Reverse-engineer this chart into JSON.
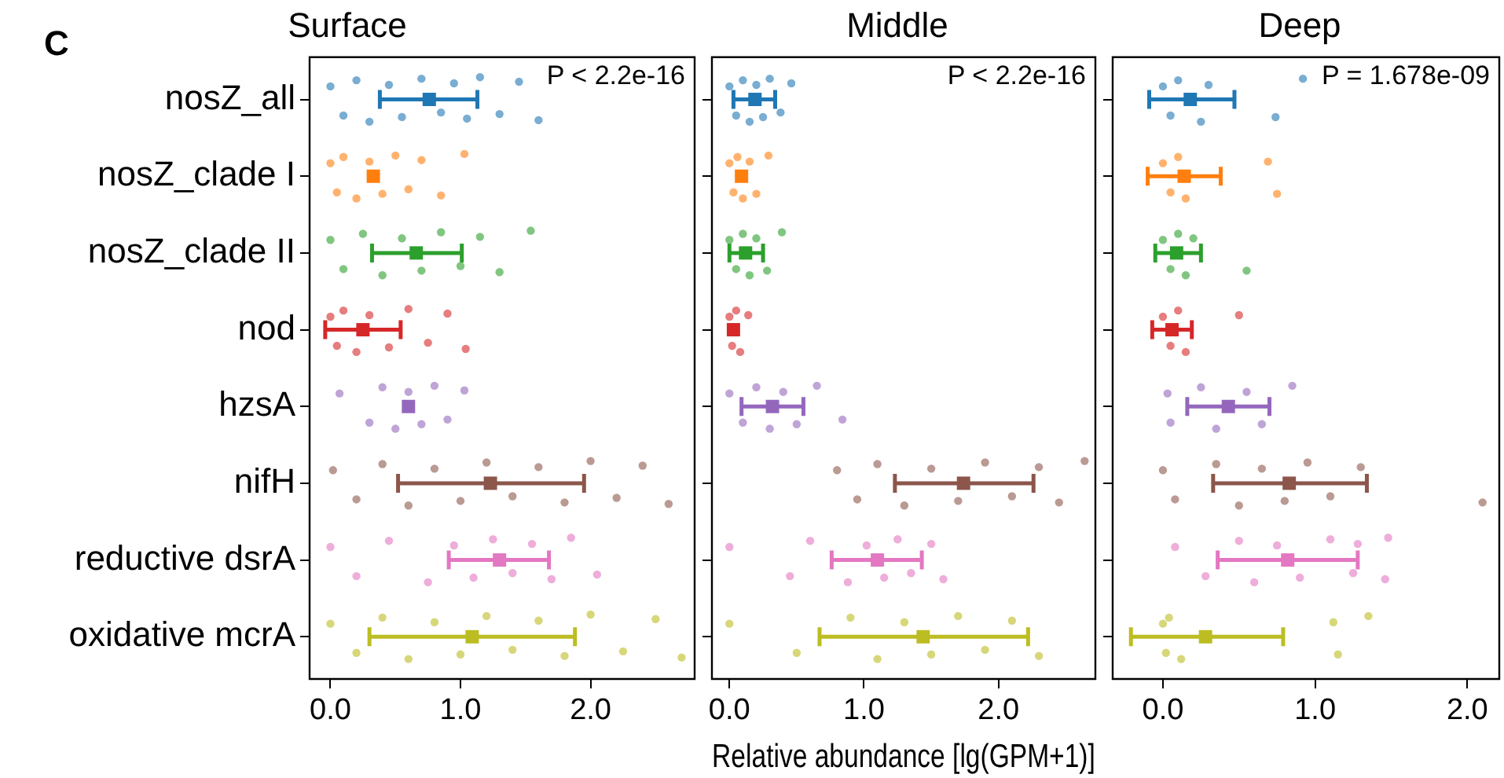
{
  "chart_data": [
    {
      "type": "scatter",
      "title": "Surface",
      "orientation": "horizontal",
      "annotations": [
        "C",
        "P < 2.2e-16"
      ],
      "categories": [
        "nosZ_all",
        "nosZ_clade I",
        "nosZ_clade II",
        "nod",
        "hzsA",
        "nifH",
        "reductive dsrA",
        "oxidative mcrA"
      ],
      "xlim": [
        -0.16,
        2.8
      ],
      "xticks": [
        {
          "value": 0,
          "label": "0.0"
        },
        {
          "value": 1,
          "label": "1.0"
        },
        {
          "value": 2,
          "label": "2.0"
        }
      ],
      "series": [
        {
          "type": "scatter",
          "marker": "circle",
          "color": "#1f77b4",
          "x": [
            "nosZ_all",
            "nosZ_all",
            "nosZ_all",
            "nosZ_all",
            "nosZ_all",
            "nosZ_all",
            "nosZ_all",
            "nosZ_all",
            "nosZ_all",
            "nosZ_all",
            "nosZ_all",
            "nosZ_all",
            "nosZ_all",
            "nosZ_all"
          ],
          "values": [
            0.0,
            0.1,
            0.2,
            0.3,
            0.45,
            0.55,
            0.7,
            0.85,
            0.95,
            1.05,
            1.15,
            1.3,
            1.45,
            1.6
          ]
        },
        {
          "type": "scatter",
          "marker": "circle",
          "color": "#ff7f0e",
          "x": [
            "nosZ_clade I",
            "nosZ_clade I",
            "nosZ_clade I",
            "nosZ_clade I",
            "nosZ_clade I",
            "nosZ_clade I",
            "nosZ_clade I",
            "nosZ_clade I",
            "nosZ_clade I",
            "nosZ_clade I",
            "nosZ_clade I"
          ],
          "values": [
            0.0,
            0.05,
            0.1,
            0.2,
            0.3,
            0.4,
            0.5,
            0.6,
            0.7,
            0.85,
            1.03
          ]
        },
        {
          "type": "scatter",
          "marker": "circle",
          "color": "#2ca02c",
          "x": [
            "nosZ_clade II",
            "nosZ_clade II",
            "nosZ_clade II",
            "nosZ_clade II",
            "nosZ_clade II",
            "nosZ_clade II",
            "nosZ_clade II",
            "nosZ_clade II",
            "nosZ_clade II",
            "nosZ_clade II",
            "nosZ_clade II"
          ],
          "values": [
            0.0,
            0.1,
            0.25,
            0.4,
            0.55,
            0.7,
            0.85,
            1.0,
            1.15,
            1.3,
            1.54
          ]
        },
        {
          "type": "scatter",
          "marker": "circle",
          "color": "#d62728",
          "x": [
            "nod",
            "nod",
            "nod",
            "nod",
            "nod",
            "nod",
            "nod",
            "nod",
            "nod",
            "nod"
          ],
          "values": [
            0.0,
            0.05,
            0.1,
            0.2,
            0.3,
            0.45,
            0.6,
            0.75,
            0.9,
            1.04
          ]
        },
        {
          "type": "scatter",
          "marker": "circle",
          "color": "#9467bd",
          "x": [
            "hzsA",
            "hzsA",
            "hzsA",
            "hzsA",
            "hzsA",
            "hzsA",
            "hzsA",
            "hzsA",
            "hzsA"
          ],
          "values": [
            0.07,
            0.3,
            0.4,
            0.5,
            0.6,
            0.7,
            0.8,
            0.9,
            1.03
          ]
        },
        {
          "type": "scatter",
          "marker": "circle",
          "color": "#8c564b",
          "x": [
            "nifH",
            "nifH",
            "nifH",
            "nifH",
            "nifH",
            "nifH",
            "nifH",
            "nifH",
            "nifH",
            "nifH",
            "nifH",
            "nifH",
            "nifH",
            "nifH"
          ],
          "values": [
            0.02,
            0.2,
            0.4,
            0.6,
            0.8,
            1.0,
            1.2,
            1.4,
            1.6,
            1.8,
            2.0,
            2.2,
            2.4,
            2.6
          ]
        },
        {
          "type": "scatter",
          "marker": "circle",
          "color": "#e377c2",
          "x": [
            "reductive dsrA",
            "reductive dsrA",
            "reductive dsrA",
            "reductive dsrA",
            "reductive dsrA",
            "reductive dsrA",
            "reductive dsrA",
            "reductive dsrA",
            "reductive dsrA",
            "reductive dsrA",
            "reductive dsrA",
            "reductive dsrA"
          ],
          "values": [
            0.0,
            0.2,
            0.45,
            0.75,
            0.95,
            1.1,
            1.25,
            1.4,
            1.55,
            1.7,
            1.85,
            2.05
          ]
        },
        {
          "type": "scatter",
          "marker": "circle",
          "color": "#bcbd22",
          "x": [
            "oxidative mcrA",
            "oxidative mcrA",
            "oxidative mcrA",
            "oxidative mcrA",
            "oxidative mcrA",
            "oxidative mcrA",
            "oxidative mcrA",
            "oxidative mcrA",
            "oxidative mcrA",
            "oxidative mcrA",
            "oxidative mcrA",
            "oxidative mcrA",
            "oxidative mcrA",
            "oxidative mcrA"
          ],
          "values": [
            0.0,
            0.2,
            0.4,
            0.6,
            0.8,
            1.0,
            1.2,
            1.4,
            1.6,
            1.8,
            2.0,
            2.25,
            2.5,
            2.7
          ]
        },
        {
          "type": "scatter",
          "colors": [
            "#1f77b4",
            "#ff7f0e",
            "#2ca02c",
            "#d62728",
            "#9467bd",
            "#8c564b",
            "#e377c2",
            "#bcbd22"
          ],
          "values": [
            0.76,
            0.33,
            0.66,
            0.25,
            0.6,
            1.23,
            1.3,
            1.09
          ],
          "marker": "square",
          "errors": [
            [
              0.38,
              1.13
            ],
            null,
            [
              0.32,
              1.01
            ],
            [
              -0.04,
              0.54
            ],
            null,
            [
              0.52,
              1.95
            ],
            [
              0.91,
              1.68
            ],
            [
              0.3,
              1.88
            ]
          ]
        }
      ]
    },
    {
      "type": "scatter",
      "title": "Middle",
      "orientation": "horizontal",
      "xlabel": "Relative abundance [lg(GPM+1)]",
      "tick_labels": "x",
      "annotations": [
        "P < 2.2e-16"
      ],
      "categories": [
        "nosZ_all",
        "nosZ_clade I",
        "nosZ_clade II",
        "nod",
        "hzsA",
        "nifH",
        "reductive dsrA",
        "oxidative mcrA"
      ],
      "xlim": [
        -0.13,
        2.72
      ],
      "xticks": [
        {
          "value": 0,
          "label": "0.0"
        },
        {
          "value": 1,
          "label": "1.0"
        },
        {
          "value": 2,
          "label": "2.0"
        }
      ],
      "series": [
        {
          "type": "scatter",
          "marker": "circle",
          "color": "#1f77b4",
          "x": [
            "nosZ_all",
            "nosZ_all",
            "nosZ_all",
            "nosZ_all",
            "nosZ_all",
            "nosZ_all",
            "nosZ_all",
            "nosZ_all",
            "nosZ_all"
          ],
          "values": [
            0.0,
            0.05,
            0.1,
            0.15,
            0.2,
            0.25,
            0.3,
            0.38,
            0.46
          ]
        },
        {
          "type": "scatter",
          "marker": "circle",
          "color": "#ff7f0e",
          "x": [
            "nosZ_clade I",
            "nosZ_clade I",
            "nosZ_clade I",
            "nosZ_clade I",
            "nosZ_clade I",
            "nosZ_clade I",
            "nosZ_clade I"
          ],
          "values": [
            0.0,
            0.03,
            0.06,
            0.1,
            0.15,
            0.2,
            0.29
          ]
        },
        {
          "type": "scatter",
          "marker": "circle",
          "color": "#2ca02c",
          "x": [
            "nosZ_clade II",
            "nosZ_clade II",
            "nosZ_clade II",
            "nosZ_clade II",
            "nosZ_clade II",
            "nosZ_clade II",
            "nosZ_clade II"
          ],
          "values": [
            0.0,
            0.05,
            0.1,
            0.15,
            0.2,
            0.28,
            0.39
          ]
        },
        {
          "type": "scatter",
          "marker": "circle",
          "color": "#d62728",
          "x": [
            "nod",
            "nod",
            "nod",
            "nod",
            "nod"
          ],
          "values": [
            0.0,
            0.02,
            0.05,
            0.08,
            0.14
          ]
        },
        {
          "type": "scatter",
          "marker": "circle",
          "color": "#9467bd",
          "x": [
            "hzsA",
            "hzsA",
            "hzsA",
            "hzsA",
            "hzsA",
            "hzsA",
            "hzsA",
            "hzsA"
          ],
          "values": [
            0.0,
            0.1,
            0.2,
            0.3,
            0.4,
            0.5,
            0.65,
            0.84
          ]
        },
        {
          "type": "scatter",
          "marker": "circle",
          "color": "#8c564b",
          "x": [
            "nifH",
            "nifH",
            "nifH",
            "nifH",
            "nifH",
            "nifH",
            "nifH",
            "nifH",
            "nifH",
            "nifH",
            "nifH"
          ],
          "values": [
            0.8,
            0.95,
            1.1,
            1.3,
            1.5,
            1.7,
            1.9,
            2.1,
            2.3,
            2.45,
            2.64
          ]
        },
        {
          "type": "scatter",
          "marker": "circle",
          "color": "#e377c2",
          "x": [
            "reductive dsrA",
            "reductive dsrA",
            "reductive dsrA",
            "reductive dsrA",
            "reductive dsrA",
            "reductive dsrA",
            "reductive dsrA",
            "reductive dsrA",
            "reductive dsrA",
            "reductive dsrA"
          ],
          "values": [
            0.0,
            0.45,
            0.6,
            0.88,
            1.02,
            1.15,
            1.25,
            1.35,
            1.5,
            1.59
          ]
        },
        {
          "type": "scatter",
          "marker": "circle",
          "color": "#bcbd22",
          "x": [
            "oxidative mcrA",
            "oxidative mcrA",
            "oxidative mcrA",
            "oxidative mcrA",
            "oxidative mcrA",
            "oxidative mcrA",
            "oxidative mcrA",
            "oxidative mcrA",
            "oxidative mcrA",
            "oxidative mcrA"
          ],
          "values": [
            0.0,
            0.5,
            0.9,
            1.1,
            1.3,
            1.5,
            1.7,
            1.9,
            2.1,
            2.3
          ]
        },
        {
          "type": "scatter",
          "colors": [
            "#1f77b4",
            "#ff7f0e",
            "#2ca02c",
            "#d62728",
            "#9467bd",
            "#8c564b",
            "#e377c2",
            "#bcbd22"
          ],
          "values": [
            0.19,
            0.09,
            0.12,
            0.03,
            0.32,
            1.74,
            1.1,
            1.44
          ],
          "marker": "square",
          "errors": [
            [
              0.03,
              0.34
            ],
            null,
            [
              0.0,
              0.25
            ],
            null,
            [
              0.09,
              0.55
            ],
            [
              1.23,
              2.26
            ],
            [
              0.76,
              1.43
            ],
            [
              0.67,
              2.22
            ]
          ]
        }
      ]
    },
    {
      "type": "scatter",
      "title": "Deep",
      "orientation": "horizontal",
      "tick_labels": "x",
      "annotations": [
        "P = 1.678e-09"
      ],
      "categories": [
        "nosZ_all",
        "nosZ_clade I",
        "nosZ_clade II",
        "nod",
        "hzsA",
        "nifH",
        "reductive dsrA",
        "oxidative mcrA"
      ],
      "xlim": [
        -0.33,
        2.21
      ],
      "xticks": [
        {
          "value": 0,
          "label": "0.0"
        },
        {
          "value": 1,
          "label": "1.0"
        },
        {
          "value": 2,
          "label": "2.0"
        }
      ],
      "series": [
        {
          "type": "scatter",
          "marker": "circle",
          "color": "#1f77b4",
          "x": [
            "nosZ_all",
            "nosZ_all",
            "nosZ_all",
            "nosZ_all",
            "nosZ_all",
            "nosZ_all",
            "nosZ_all"
          ],
          "values": [
            0.0,
            0.05,
            0.1,
            0.25,
            0.3,
            0.74,
            0.92
          ]
        },
        {
          "type": "scatter",
          "marker": "circle",
          "color": "#ff7f0e",
          "x": [
            "nosZ_clade I",
            "nosZ_clade I",
            "nosZ_clade I",
            "nosZ_clade I",
            "nosZ_clade I",
            "nosZ_clade I"
          ],
          "values": [
            0.0,
            0.05,
            0.1,
            0.15,
            0.69,
            0.75
          ]
        },
        {
          "type": "scatter",
          "marker": "circle",
          "color": "#2ca02c",
          "x": [
            "nosZ_clade II",
            "nosZ_clade II",
            "nosZ_clade II",
            "nosZ_clade II",
            "nosZ_clade II",
            "nosZ_clade II"
          ],
          "values": [
            0.0,
            0.05,
            0.1,
            0.15,
            0.2,
            0.55
          ]
        },
        {
          "type": "scatter",
          "marker": "circle",
          "color": "#d62728",
          "x": [
            "nod",
            "nod",
            "nod",
            "nod",
            "nod"
          ],
          "values": [
            0.0,
            0.05,
            0.1,
            0.15,
            0.5
          ]
        },
        {
          "type": "scatter",
          "marker": "circle",
          "color": "#9467bd",
          "x": [
            "hzsA",
            "hzsA",
            "hzsA",
            "hzsA",
            "hzsA",
            "hzsA",
            "hzsA"
          ],
          "values": [
            0.03,
            0.05,
            0.25,
            0.35,
            0.55,
            0.65,
            0.85
          ]
        },
        {
          "type": "scatter",
          "marker": "circle",
          "color": "#8c564b",
          "x": [
            "nifH",
            "nifH",
            "nifH",
            "nifH",
            "nifH",
            "nifH",
            "nifH",
            "nifH",
            "nifH",
            "nifH"
          ],
          "values": [
            0.0,
            0.08,
            0.35,
            0.5,
            0.65,
            0.8,
            0.95,
            1.1,
            1.3,
            2.1
          ]
        },
        {
          "type": "scatter",
          "marker": "circle",
          "color": "#e377c2",
          "x": [
            "reductive dsrA",
            "reductive dsrA",
            "reductive dsrA",
            "reductive dsrA",
            "reductive dsrA",
            "reductive dsrA",
            "reductive dsrA",
            "reductive dsrA",
            "reductive dsrA",
            "reductive dsrA",
            "reductive dsrA"
          ],
          "values": [
            0.08,
            0.28,
            0.5,
            0.6,
            0.75,
            0.9,
            1.1,
            1.25,
            1.28,
            1.46,
            1.48
          ]
        },
        {
          "type": "scatter",
          "marker": "circle",
          "color": "#bcbd22",
          "x": [
            "oxidative mcrA",
            "oxidative mcrA",
            "oxidative mcrA",
            "oxidative mcrA",
            "oxidative mcrA",
            "oxidative mcrA",
            "oxidative mcrA"
          ],
          "values": [
            0.0,
            0.02,
            0.04,
            0.12,
            1.12,
            1.15,
            1.35
          ]
        },
        {
          "type": "scatter",
          "colors": [
            "#1f77b4",
            "#ff7f0e",
            "#2ca02c",
            "#d62728",
            "#9467bd",
            "#8c564b",
            "#e377c2",
            "#bcbd22"
          ],
          "values": [
            0.18,
            0.14,
            0.09,
            0.06,
            0.43,
            0.83,
            0.82,
            0.28
          ],
          "marker": "square",
          "errors": [
            [
              -0.09,
              0.47
            ],
            [
              -0.1,
              0.38
            ],
            [
              -0.05,
              0.25
            ],
            [
              -0.07,
              0.19
            ],
            [
              0.16,
              0.7
            ],
            [
              0.33,
              1.34
            ],
            [
              0.36,
              1.28
            ],
            [
              -0.21,
              0.79
            ]
          ]
        }
      ]
    }
  ]
}
